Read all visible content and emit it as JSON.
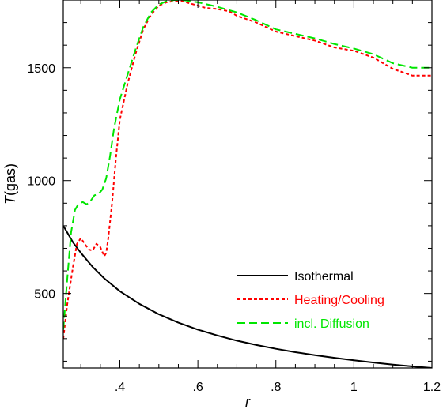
{
  "chart_data": {
    "type": "line",
    "title": "",
    "xlabel": "r",
    "ylabel": {
      "italic": "T",
      "rest": "(gas)"
    },
    "xlim": [
      0.255,
      1.2
    ],
    "ylim": [
      170,
      1800
    ],
    "x_ticks": [
      {
        "value": 0.4,
        "label": ".4"
      },
      {
        "value": 0.6,
        "label": ".6"
      },
      {
        "value": 0.8,
        "label": ".8"
      },
      {
        "value": 1.0,
        "label": "1"
      },
      {
        "value": 1.2,
        "label": "1.2"
      }
    ],
    "x_minor_step": 0.05,
    "y_ticks": [
      {
        "value": 500,
        "label": "500"
      },
      {
        "value": 1000,
        "label": "1000"
      },
      {
        "value": 1500,
        "label": "1500"
      }
    ],
    "y_minor_step": 100,
    "grid": false,
    "legend_position": "bottom-right",
    "series": [
      {
        "name": "Isothermal",
        "color": "#000000",
        "dash": "solid",
        "x": [
          0.255,
          0.28,
          0.3,
          0.33,
          0.36,
          0.4,
          0.45,
          0.5,
          0.55,
          0.6,
          0.65,
          0.7,
          0.75,
          0.8,
          0.85,
          0.9,
          0.95,
          1.0,
          1.05,
          1.1,
          1.15,
          1.2
        ],
        "y": [
          800,
          726,
          680,
          618,
          567,
          510,
          454,
          408,
          371,
          340,
          314,
          291,
          272,
          255,
          240,
          227,
          215,
          204,
          194,
          185,
          177,
          170
        ]
      },
      {
        "name": "Heating/Cooling",
        "color": "#ff0000",
        "dash": "short",
        "x": [
          0.255,
          0.265,
          0.28,
          0.29,
          0.3,
          0.31,
          0.32,
          0.33,
          0.34,
          0.35,
          0.36,
          0.365,
          0.37,
          0.38,
          0.39,
          0.4,
          0.42,
          0.44,
          0.46,
          0.48,
          0.5,
          0.52,
          0.54,
          0.56,
          0.58,
          0.6,
          0.62,
          0.65,
          0.68,
          0.7,
          0.75,
          0.8,
          0.85,
          0.9,
          0.95,
          1.0,
          1.05,
          1.1,
          1.15,
          1.2
        ],
        "y": [
          300,
          450,
          620,
          720,
          745,
          720,
          695,
          690,
          720,
          705,
          665,
          680,
          740,
          900,
          1100,
          1270,
          1430,
          1560,
          1670,
          1735,
          1775,
          1790,
          1795,
          1795,
          1785,
          1775,
          1765,
          1760,
          1750,
          1730,
          1700,
          1660,
          1640,
          1620,
          1590,
          1575,
          1545,
          1495,
          1465,
          1465
        ]
      },
      {
        "name": "incl. Diffusion",
        "color": "#00e600",
        "dash": "long",
        "x": [
          0.255,
          0.265,
          0.275,
          0.285,
          0.295,
          0.305,
          0.315,
          0.325,
          0.335,
          0.345,
          0.355,
          0.365,
          0.375,
          0.385,
          0.4,
          0.42,
          0.44,
          0.46,
          0.48,
          0.5,
          0.52,
          0.54,
          0.56,
          0.58,
          0.6,
          0.65,
          0.7,
          0.75,
          0.8,
          0.85,
          0.9,
          0.95,
          1.0,
          1.05,
          1.1,
          1.15,
          1.2
        ],
        "y": [
          340,
          560,
          770,
          870,
          900,
          905,
          895,
          910,
          935,
          940,
          960,
          1010,
          1110,
          1230,
          1360,
          1470,
          1580,
          1680,
          1745,
          1780,
          1795,
          1800,
          1800,
          1795,
          1790,
          1770,
          1745,
          1710,
          1670,
          1650,
          1630,
          1605,
          1585,
          1560,
          1520,
          1500,
          1500
        ]
      }
    ]
  }
}
